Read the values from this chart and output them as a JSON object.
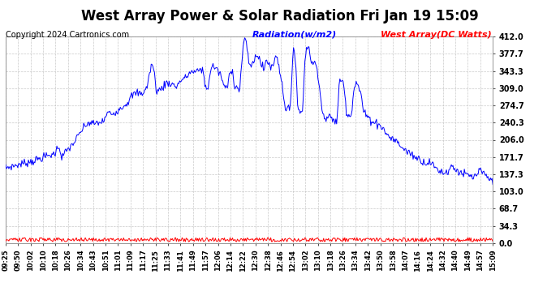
{
  "title": "West Array Power & Solar Radiation Fri Jan 19 15:09",
  "copyright": "Copyright 2024 Cartronics.com",
  "legend_radiation": "Radiation(w/m2)",
  "legend_west_array": "West Array(DC Watts)",
  "radiation_color": "#0000ff",
  "west_array_color": "#ff0000",
  "bg_color": "#ffffff",
  "grid_color": "#bbbbbb",
  "ymin": 0.0,
  "ymax": 412.0,
  "yticks": [
    0.0,
    34.3,
    68.7,
    103.0,
    137.3,
    171.7,
    206.0,
    240.3,
    274.7,
    309.0,
    343.3,
    377.7,
    412.0
  ],
  "x_labels": [
    "09:25",
    "09:50",
    "10:02",
    "10:10",
    "10:18",
    "10:26",
    "10:34",
    "10:43",
    "10:51",
    "11:01",
    "11:09",
    "11:17",
    "11:25",
    "11:33",
    "11:41",
    "11:49",
    "11:57",
    "12:06",
    "12:14",
    "12:22",
    "12:30",
    "12:38",
    "12:46",
    "12:54",
    "13:02",
    "13:10",
    "13:18",
    "13:26",
    "13:34",
    "13:42",
    "13:50",
    "13:58",
    "14:07",
    "14:16",
    "14:24",
    "14:32",
    "14:40",
    "14:49",
    "14:57",
    "15:09"
  ],
  "title_fontsize": 12,
  "axis_fontsize": 7,
  "legend_fontsize": 8,
  "copyright_fontsize": 7,
  "radiation_keypoints": [
    [
      0.0,
      150
    ],
    [
      0.02,
      155
    ],
    [
      0.04,
      160
    ],
    [
      0.06,
      165
    ],
    [
      0.08,
      172
    ],
    [
      0.1,
      178
    ],
    [
      0.11,
      195
    ],
    [
      0.115,
      170
    ],
    [
      0.12,
      178
    ],
    [
      0.14,
      200
    ],
    [
      0.16,
      230
    ],
    [
      0.17,
      240
    ],
    [
      0.18,
      238
    ],
    [
      0.2,
      242
    ],
    [
      0.21,
      260
    ],
    [
      0.22,
      258
    ],
    [
      0.23,
      265
    ],
    [
      0.25,
      280
    ],
    [
      0.26,
      295
    ],
    [
      0.27,
      300
    ],
    [
      0.28,
      298
    ],
    [
      0.29,
      310
    ],
    [
      0.3,
      360
    ],
    [
      0.305,
      340
    ],
    [
      0.31,
      302
    ],
    [
      0.32,
      308
    ],
    [
      0.33,
      320
    ],
    [
      0.34,
      318
    ],
    [
      0.35,
      312
    ],
    [
      0.36,
      325
    ],
    [
      0.37,
      330
    ],
    [
      0.38,
      342
    ],
    [
      0.39,
      340
    ],
    [
      0.4,
      348
    ],
    [
      0.405,
      345
    ],
    [
      0.41,
      310
    ],
    [
      0.415,
      308
    ],
    [
      0.42,
      340
    ],
    [
      0.425,
      355
    ],
    [
      0.43,
      350
    ],
    [
      0.44,
      338
    ],
    [
      0.45,
      310
    ],
    [
      0.455,
      308
    ],
    [
      0.46,
      340
    ],
    [
      0.465,
      348
    ],
    [
      0.47,
      315
    ],
    [
      0.48,
      305
    ],
    [
      0.49,
      415
    ],
    [
      0.495,
      390
    ],
    [
      0.5,
      355
    ],
    [
      0.51,
      360
    ],
    [
      0.515,
      380
    ],
    [
      0.52,
      370
    ],
    [
      0.525,
      355
    ],
    [
      0.53,
      345
    ],
    [
      0.535,
      365
    ],
    [
      0.54,
      360
    ],
    [
      0.545,
      350
    ],
    [
      0.55,
      355
    ],
    [
      0.555,
      380
    ],
    [
      0.56,
      360
    ],
    [
      0.57,
      300
    ],
    [
      0.575,
      265
    ],
    [
      0.58,
      270
    ],
    [
      0.585,
      265
    ],
    [
      0.59,
      395
    ],
    [
      0.595,
      370
    ],
    [
      0.6,
      265
    ],
    [
      0.605,
      260
    ],
    [
      0.61,
      268
    ],
    [
      0.615,
      380
    ],
    [
      0.62,
      395
    ],
    [
      0.625,
      375
    ],
    [
      0.63,
      355
    ],
    [
      0.635,
      360
    ],
    [
      0.64,
      350
    ],
    [
      0.645,
      305
    ],
    [
      0.65,
      260
    ],
    [
      0.655,
      250
    ],
    [
      0.66,
      248
    ],
    [
      0.665,
      252
    ],
    [
      0.67,
      248
    ],
    [
      0.675,
      245
    ],
    [
      0.68,
      240
    ],
    [
      0.685,
      320
    ],
    [
      0.69,
      330
    ],
    [
      0.695,
      310
    ],
    [
      0.7,
      260
    ],
    [
      0.705,
      255
    ],
    [
      0.71,
      258
    ],
    [
      0.715,
      310
    ],
    [
      0.72,
      320
    ],
    [
      0.725,
      310
    ],
    [
      0.73,
      295
    ],
    [
      0.735,
      260
    ],
    [
      0.74,
      255
    ],
    [
      0.745,
      250
    ],
    [
      0.75,
      245
    ],
    [
      0.76,
      240
    ],
    [
      0.77,
      235
    ],
    [
      0.78,
      220
    ],
    [
      0.79,
      210
    ],
    [
      0.8,
      205
    ],
    [
      0.81,
      195
    ],
    [
      0.82,
      185
    ],
    [
      0.83,
      180
    ],
    [
      0.84,
      172
    ],
    [
      0.85,
      168
    ],
    [
      0.86,
      160
    ],
    [
      0.87,
      162
    ],
    [
      0.875,
      158
    ],
    [
      0.88,
      152
    ],
    [
      0.89,
      145
    ],
    [
      0.9,
      140
    ],
    [
      0.91,
      145
    ],
    [
      0.915,
      155
    ],
    [
      0.92,
      150
    ],
    [
      0.93,
      143
    ],
    [
      0.94,
      138
    ],
    [
      0.95,
      135
    ],
    [
      0.96,
      130
    ],
    [
      0.97,
      140
    ],
    [
      0.975,
      145
    ],
    [
      0.98,
      138
    ],
    [
      0.985,
      135
    ],
    [
      0.99,
      130
    ],
    [
      0.995,
      128
    ],
    [
      1.0,
      118
    ]
  ]
}
